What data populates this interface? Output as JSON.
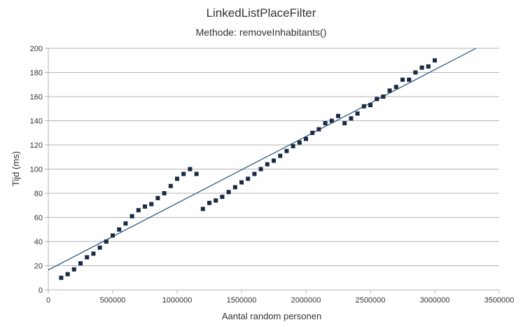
{
  "chart_data": {
    "type": "scatter",
    "title": "LinkedListPlaceFilter",
    "subtitle": "Methode: removeInhabitants()",
    "xlabel": "Aantal random personen",
    "ylabel": "Tijd (ms)",
    "xlim": [
      0,
      3500000
    ],
    "ylim": [
      0,
      200
    ],
    "x_ticks": [
      0,
      500000,
      1000000,
      1500000,
      2000000,
      2500000,
      3000000,
      3500000
    ],
    "x_tick_labels": [
      "0",
      "500000",
      "1000000",
      "1500000",
      "2000000",
      "2500000",
      "3000000",
      "3500000"
    ],
    "y_ticks": [
      0,
      20,
      40,
      60,
      80,
      100,
      120,
      140,
      160,
      180,
      200
    ],
    "y_tick_labels": [
      "0",
      "20",
      "40",
      "60",
      "80",
      "100",
      "120",
      "140",
      "160",
      "180",
      "200"
    ],
    "grid": true,
    "legend": "none",
    "colors": {
      "points": "#1a2a44",
      "trendline": "#1f4e79",
      "grid": "#b3b3b3"
    },
    "series": [
      {
        "x": [
          100000,
          150000,
          200000,
          250000,
          300000,
          350000,
          400000,
          450000,
          500000,
          550000,
          600000,
          650000,
          700000,
          750000,
          800000,
          850000,
          900000,
          950000,
          1000000,
          1050000,
          1100000,
          1150000,
          1200000,
          1250000,
          1300000,
          1350000,
          1400000,
          1450000,
          1500000,
          1550000,
          1600000,
          1650000,
          1700000,
          1750000,
          1800000,
          1850000,
          1900000,
          1950000,
          2000000,
          2050000,
          2100000,
          2150000,
          2200000,
          2250000,
          2300000,
          2350000,
          2400000,
          2450000,
          2500000,
          2550000,
          2600000,
          2650000,
          2700000,
          2750000,
          2800000,
          2850000,
          2900000,
          2950000,
          3000000
        ],
        "y": [
          10,
          13,
          17,
          22,
          27,
          30,
          35,
          40,
          45,
          50,
          55,
          61,
          66,
          69,
          71,
          76,
          80,
          86,
          92,
          96,
          100,
          96,
          67,
          72,
          74,
          77,
          81,
          85,
          89,
          92,
          96,
          100,
          104,
          107,
          111,
          115,
          119,
          122,
          125,
          130,
          133,
          138,
          140,
          144,
          138,
          142,
          146,
          152,
          153,
          158,
          160,
          165,
          168,
          174,
          174,
          180,
          184,
          185,
          190
        ]
      }
    ],
    "trendline": {
      "x": [
        0,
        3320000
      ],
      "y": [
        16.5,
        200
      ]
    }
  }
}
